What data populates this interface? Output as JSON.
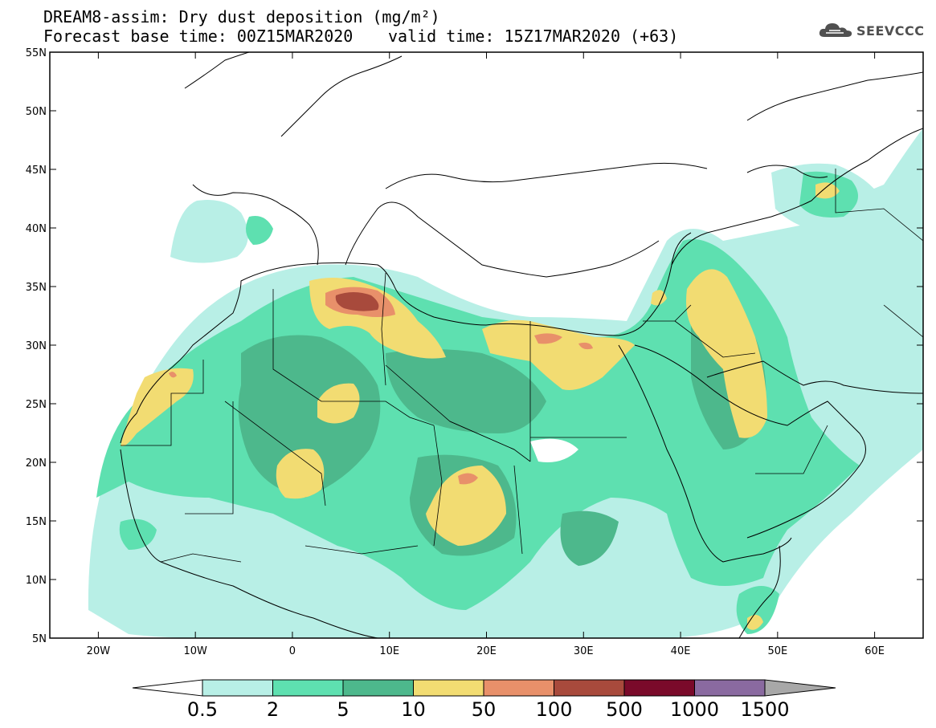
{
  "header": {
    "line1": "DREAM8-assim: Dry dust deposition (mg/m²)",
    "line2": "Forecast base time: 00Z15MAR2020",
    "line3": "valid time: 15Z17MAR2020 (+63)"
  },
  "logo": {
    "text": "SEEVCCC",
    "icon": "cloud-icon"
  },
  "map": {
    "lon_range": [
      -25,
      65
    ],
    "lat_range": [
      5,
      55
    ],
    "lat_ticks": [
      {
        "v": 55,
        "label": "55N"
      },
      {
        "v": 50,
        "label": "50N"
      },
      {
        "v": 45,
        "label": "45N"
      },
      {
        "v": 40,
        "label": "40N"
      },
      {
        "v": 35,
        "label": "35N"
      },
      {
        "v": 30,
        "label": "30N"
      },
      {
        "v": 25,
        "label": "25N"
      },
      {
        "v": 20,
        "label": "20N"
      },
      {
        "v": 15,
        "label": "15N"
      },
      {
        "v": 10,
        "label": "10N"
      },
      {
        "v": 5,
        "label": "5N"
      }
    ],
    "lon_ticks": [
      {
        "v": -20,
        "label": "20W"
      },
      {
        "v": -10,
        "label": "10W"
      },
      {
        "v": 0,
        "label": "0"
      },
      {
        "v": 10,
        "label": "10E"
      },
      {
        "v": 20,
        "label": "20E"
      },
      {
        "v": 30,
        "label": "30E"
      },
      {
        "v": 40,
        "label": "40E"
      },
      {
        "v": 50,
        "label": "50E"
      },
      {
        "v": 60,
        "label": "60E"
      }
    ]
  },
  "colorbar": {
    "labels": [
      "0.5",
      "2",
      "5",
      "10",
      "50",
      "100",
      "500",
      "1000",
      "1500"
    ],
    "colors": [
      "#b8efe6",
      "#5ee0b0",
      "#4db88c",
      "#f2dc72",
      "#e8906a",
      "#a84a3c",
      "#7a0a2a",
      "#8a6aa0",
      "#a8a8a8"
    ]
  },
  "legend_colors": {
    "c1": "#b8efe6",
    "c2": "#5ee0b0",
    "c3": "#4db88c",
    "c4": "#f2dc72",
    "c5": "#e8906a",
    "c6": "#a84a3c"
  }
}
